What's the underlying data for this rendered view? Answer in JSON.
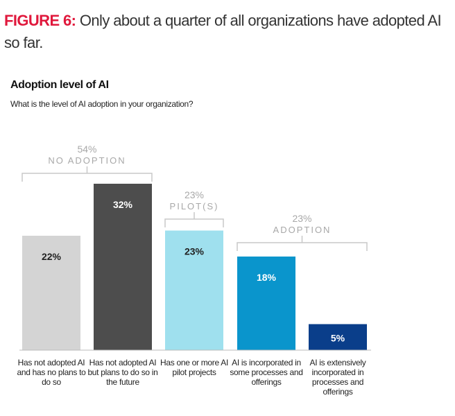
{
  "figure": {
    "lead": "FIGURE 6:",
    "text": " Only about a quarter of all organizations have adopted AI so far."
  },
  "chart_data": {
    "type": "bar",
    "title": "Adoption level of AI",
    "subtitle": "What is the level of AI adoption in your organization?",
    "categories": [
      "Has not adopted AI and has no plans to do so",
      "Has not adopted AI but plans to do so in the future",
      "Has one or more AI pilot projects",
      "AI is incorporated in some processes and offerings",
      "AI is extensively incorporated in processes and offerings"
    ],
    "values": [
      22,
      32,
      23,
      18,
      5
    ],
    "data_labels": [
      "22%",
      "32%",
      "23%",
      "18%",
      "5%"
    ],
    "colors": [
      "#d4d4d4",
      "#4d4d4d",
      "#9fe0ee",
      "#0a95cc",
      "#0a3e8a"
    ],
    "label_colors": [
      "#222222",
      "#ffffff",
      "#222222",
      "#ffffff",
      "#ffffff"
    ],
    "groups": [
      {
        "value": "54%",
        "label": "NO ADOPTION",
        "from": 0,
        "to": 1
      },
      {
        "value": "23%",
        "label": "PILOT(S)",
        "from": 2,
        "to": 2
      },
      {
        "value": "23%",
        "label": "ADOPTION",
        "from": 3,
        "to": 4
      }
    ],
    "ylim": [
      0,
      35
    ],
    "grid": false,
    "legend": "none"
  }
}
